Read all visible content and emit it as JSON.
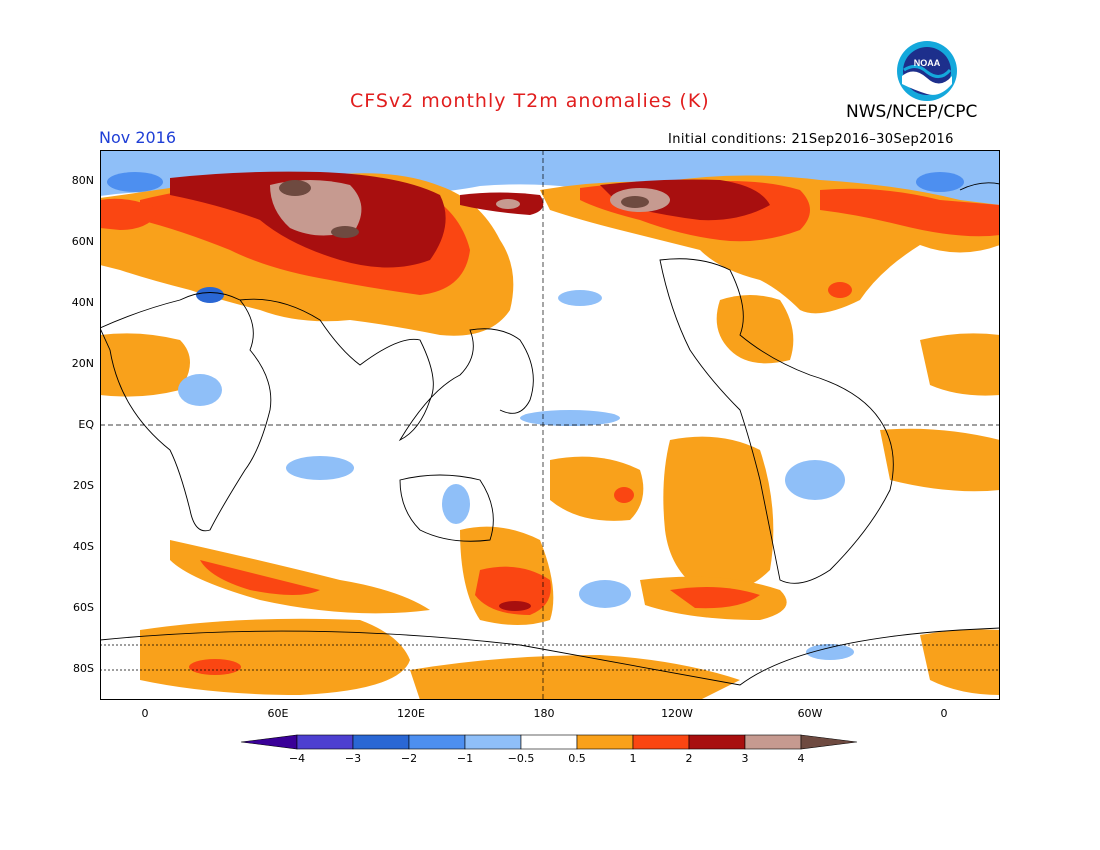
{
  "header": {
    "title": "CFSv2 monthly T2m anomalies (K)",
    "agency": "NWS/NCEP/CPC",
    "month": "Nov 2016",
    "initial_conditions": "Initial conditions: 21Sep2016–30Sep2016",
    "logo_text": "NOAA"
  },
  "axes": {
    "lat_labels": [
      "80N",
      "60N",
      "40N",
      "20N",
      "EQ",
      "20S",
      "40S",
      "60S",
      "80S"
    ],
    "lon_labels": [
      "0",
      "60E",
      "120E",
      "180",
      "120W",
      "60W",
      "0"
    ]
  },
  "colorbar": {
    "labels": [
      "−4",
      "−3",
      "−2",
      "−1",
      "−0.5",
      "0.5",
      "1",
      "2",
      "3",
      "4"
    ],
    "colors": [
      "#3a0098",
      "#4d3fd0",
      "#2a67d4",
      "#4d8ff0",
      "#8fbff8",
      "#ffffff",
      "#f9a11b",
      "#fa4612",
      "#a80f0f",
      "#c69a90",
      "#6e4a40"
    ]
  },
  "colors": {
    "title": "#e11e1e",
    "month": "#1f3fd6",
    "positive_1": "#f9a11b",
    "positive_2": "#fa4612",
    "positive_3": "#a80f0f",
    "positive_4": "#c69a90",
    "negative_1": "#8fbff8",
    "negative_2": "#4d8ff0",
    "negative_3": "#2a67d4"
  }
}
